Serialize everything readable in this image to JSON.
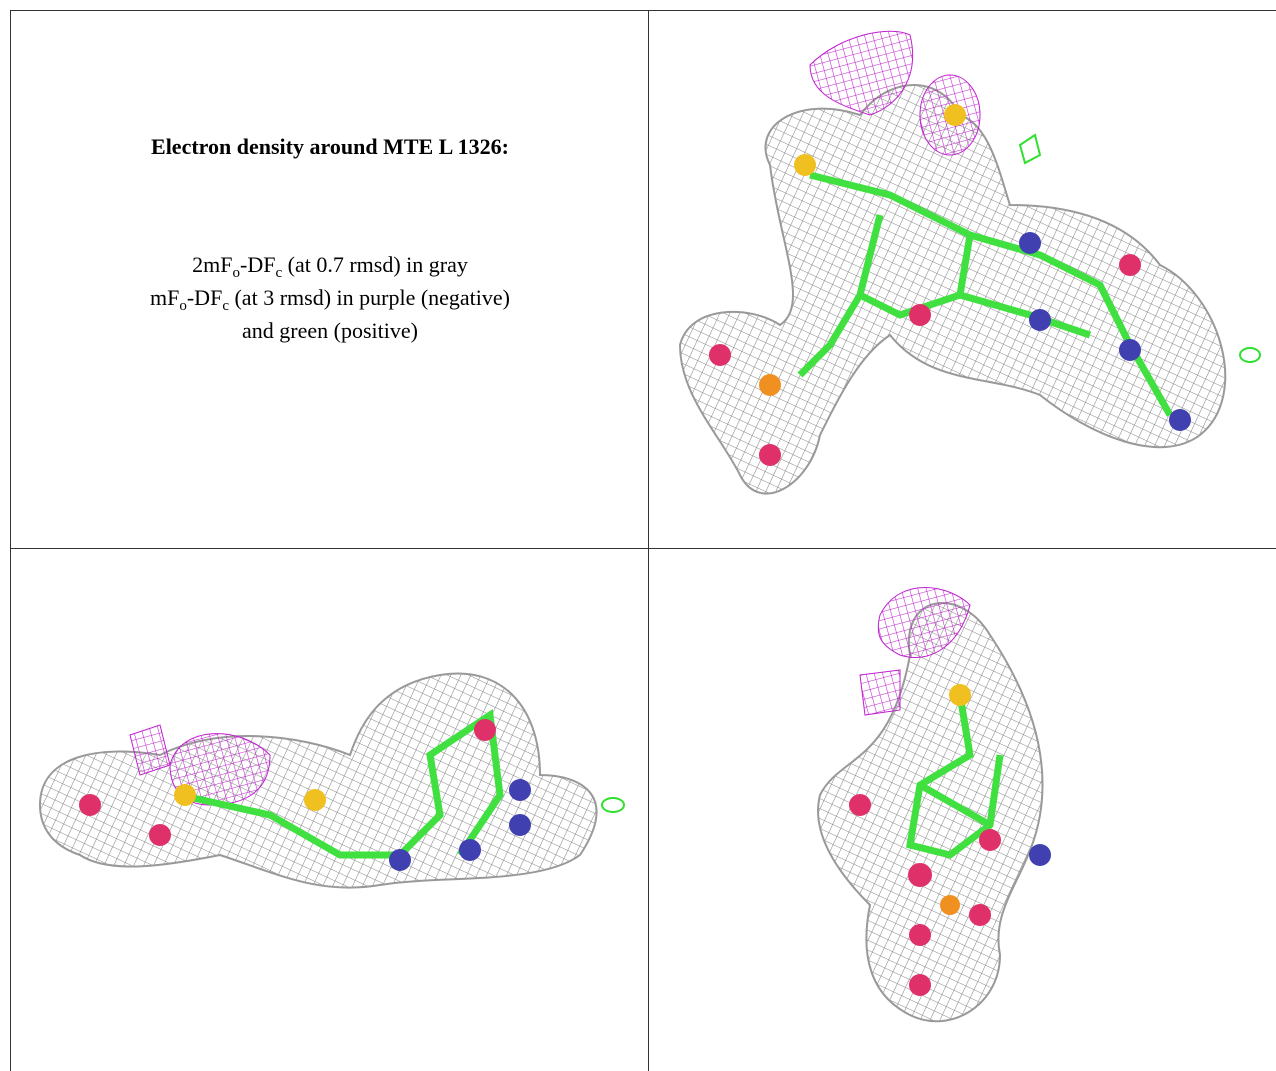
{
  "text": {
    "title": "Electron density around MTE L 1326:",
    "lines": [
      [
        "2mF",
        "o",
        "-DF",
        "c",
        " (at 0.7 rmsd) in gray"
      ],
      [
        "mF",
        "o",
        "-DF",
        "c",
        " (at 3 rmsd) in purple (negative)"
      ],
      [
        "and green (positive)"
      ]
    ]
  }
}
